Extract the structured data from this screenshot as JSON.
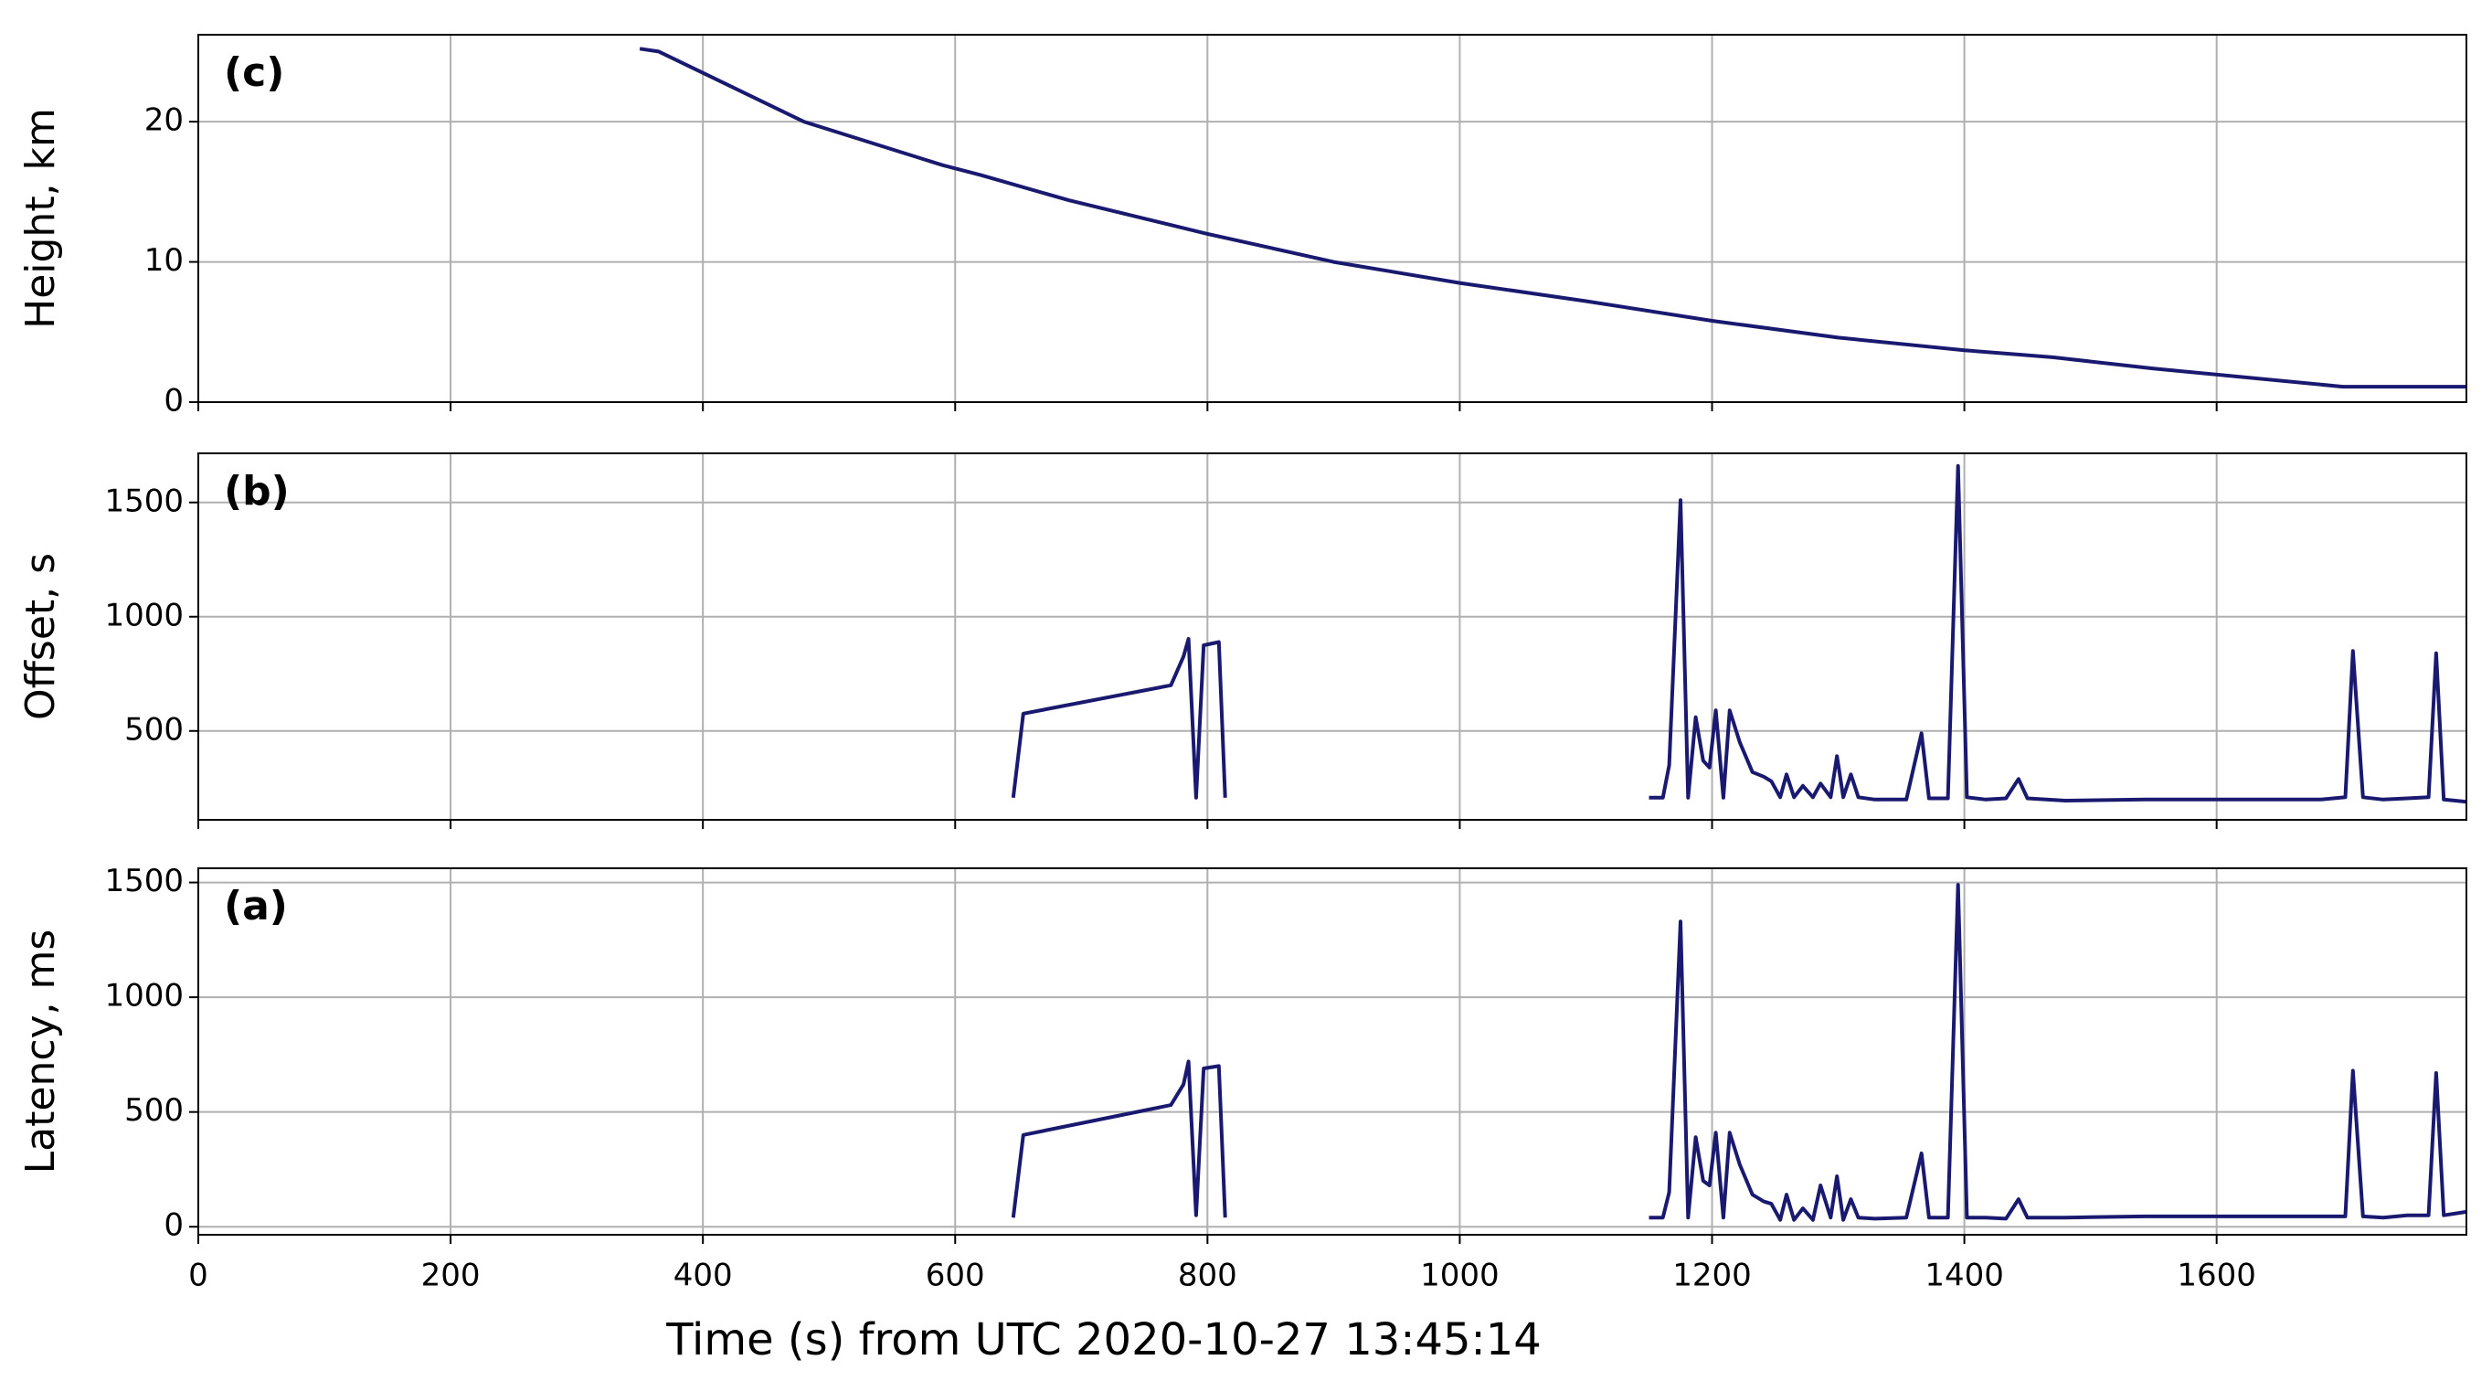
{
  "chart_data": [
    {
      "type": "line",
      "annotation": "(c)",
      "ylabel": "Height, km",
      "x": [
        350,
        365,
        480,
        590,
        620,
        690,
        800,
        850,
        900,
        1000,
        1100,
        1200,
        1300,
        1400,
        1470,
        1550,
        1700,
        1798
      ],
      "series": [
        {
          "color": "#191970",
          "values": [
            25.2,
            25.0,
            20.0,
            16.9,
            16.2,
            14.4,
            12.0,
            11.0,
            10.0,
            8.5,
            7.2,
            5.8,
            4.6,
            3.7,
            3.2,
            2.4,
            1.1,
            1.1
          ]
        }
      ],
      "xlim": [
        0,
        1798
      ],
      "xticks": [
        0,
        200,
        400,
        600,
        800,
        1000,
        1200,
        1400,
        1600
      ],
      "show_xticklabels": false,
      "ylim": [
        0,
        26.2
      ],
      "yticks": [
        0,
        10,
        20
      ],
      "grid": true
    },
    {
      "type": "line",
      "annotation": "(b)",
      "ylabel": "Offset, s",
      "x": [
        646,
        654,
        771,
        781,
        785,
        791,
        797,
        809,
        814,
        1000,
        1150,
        1161,
        1166,
        1175,
        1181,
        1187,
        1193,
        1198,
        1203,
        1209,
        1214,
        1222,
        1232,
        1241,
        1247,
        1254,
        1259,
        1265,
        1272,
        1280,
        1286,
        1294,
        1299,
        1304,
        1310,
        1316,
        1329,
        1354,
        1366,
        1372,
        1387,
        1395,
        1402,
        1417,
        1433,
        1443,
        1450,
        1480,
        1543,
        1606,
        1682,
        1702,
        1708,
        1716,
        1732,
        1751,
        1768,
        1774,
        1780,
        1798
      ],
      "series": [
        {
          "color": "#191970",
          "values": [
            208,
            576,
            700,
            826,
            903,
            208,
            875,
            889,
            208,
            null,
            208,
            208,
            350,
            1510,
            208,
            560,
            370,
            340,
            590,
            208,
            590,
            450,
            320,
            300,
            280,
            210,
            310,
            210,
            260,
            210,
            270,
            210,
            390,
            210,
            310,
            210,
            200,
            200,
            490,
            205,
            205,
            1660,
            210,
            200,
            205,
            290,
            205,
            195,
            200,
            200,
            200,
            210,
            850,
            210,
            200,
            205,
            210,
            840,
            200,
            190
          ]
        }
      ],
      "xlim": [
        0,
        1798
      ],
      "xticks": [
        0,
        200,
        400,
        600,
        800,
        1000,
        1200,
        1400,
        1600
      ],
      "show_xticklabels": false,
      "ylim": [
        111,
        1715
      ],
      "yticks": [
        500,
        1000,
        1500
      ],
      "grid": true
    },
    {
      "type": "line",
      "annotation": "(a)",
      "ylabel": "Latency, ms",
      "xlabel": "Time (s) from UTC 2020-10-27 13:45:14",
      "x": [
        646,
        654,
        771,
        781,
        785,
        791,
        797,
        809,
        814,
        1000,
        1150,
        1161,
        1166,
        1175,
        1181,
        1187,
        1193,
        1198,
        1203,
        1209,
        1214,
        1222,
        1232,
        1241,
        1247,
        1254,
        1259,
        1265,
        1272,
        1280,
        1286,
        1294,
        1299,
        1304,
        1310,
        1316,
        1329,
        1354,
        1366,
        1372,
        1387,
        1395,
        1402,
        1417,
        1433,
        1443,
        1450,
        1480,
        1543,
        1606,
        1682,
        1702,
        1708,
        1716,
        1732,
        1751,
        1768,
        1774,
        1780,
        1798
      ],
      "series": [
        {
          "color": "#191970",
          "values": [
            40,
            400,
            530,
            620,
            720,
            50,
            690,
            700,
            40,
            null,
            40,
            40,
            150,
            1330,
            40,
            390,
            200,
            180,
            410,
            40,
            410,
            270,
            140,
            110,
            100,
            30,
            140,
            30,
            80,
            30,
            180,
            40,
            220,
            30,
            120,
            40,
            35,
            40,
            320,
            40,
            40,
            1490,
            40,
            40,
            35,
            120,
            40,
            40,
            45,
            45,
            45,
            45,
            680,
            45,
            40,
            50,
            50,
            670,
            50,
            65
          ]
        }
      ],
      "xlim": [
        0,
        1798
      ],
      "xticks": [
        0,
        200,
        400,
        600,
        800,
        1000,
        1200,
        1400,
        1600
      ],
      "show_xticklabels": true,
      "ylim": [
        -35,
        1562
      ],
      "yticks": [
        0,
        500,
        1000,
        1500
      ],
      "grid": true
    }
  ]
}
